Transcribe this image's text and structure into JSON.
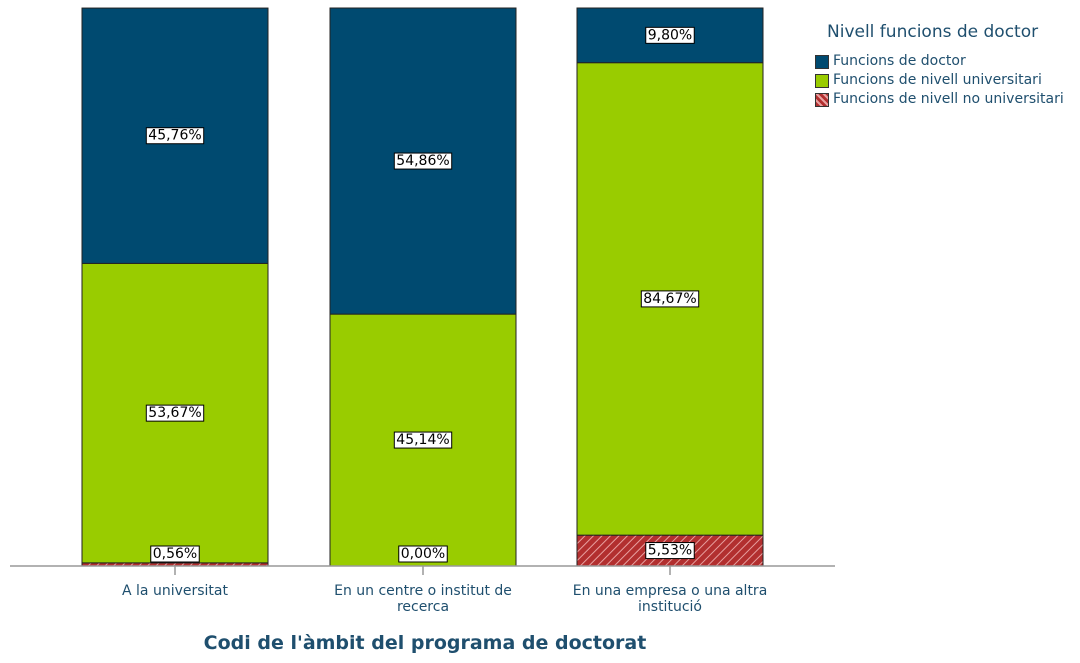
{
  "chart_data": {
    "type": "stacked_bar",
    "x_label": "Codi de l'àmbit del programa de doctorat",
    "legend_title": "Nivell funcions de doctor",
    "legend": "right",
    "categories": [
      "A la universitat",
      "En un centre o institut de recerca",
      "En una empresa o una altra institució"
    ],
    "ylim": [
      0,
      100
    ],
    "series": [
      {
        "name": "Funcions de nivell no universitari",
        "color": "#b22f2f",
        "hatch": true,
        "values": [
          0.56,
          0.0,
          5.53
        ],
        "value_labels": [
          "0,56%",
          "0,00%",
          "5,53%"
        ]
      },
      {
        "name": "Funcions de nivell universitari",
        "color": "#99cc00",
        "values": [
          53.67,
          45.14,
          84.67
        ],
        "value_labels": [
          "53,67%",
          "45,14%",
          "84,67%"
        ]
      },
      {
        "name": "Funcions de doctor",
        "color": "#004a70",
        "values": [
          45.76,
          54.86,
          9.8
        ],
        "value_labels": [
          "45,76%",
          "54,86%",
          "9,80%"
        ]
      }
    ]
  }
}
